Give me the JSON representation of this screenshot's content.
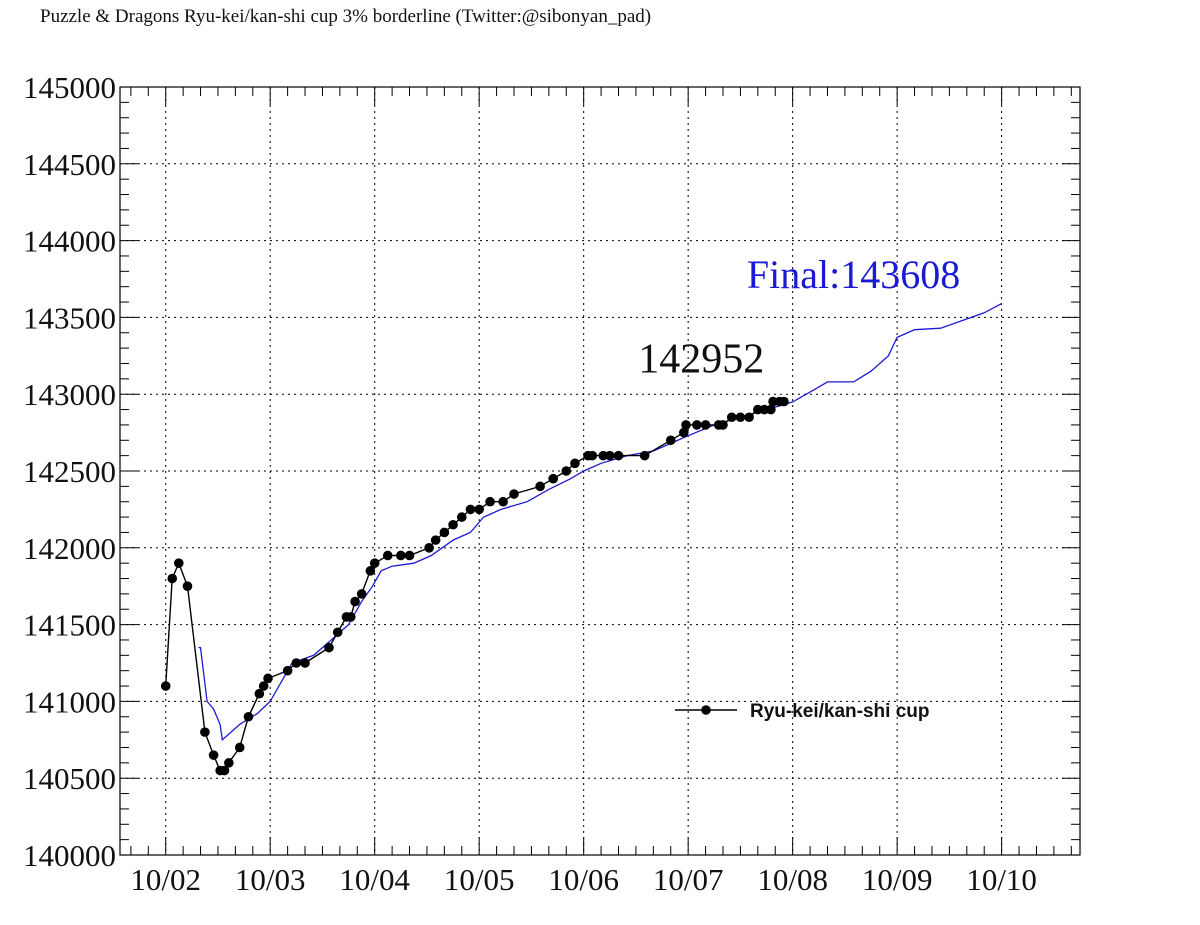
{
  "title": "Puzzle & Dragons Ryu-kei/kan-shi cup 3% borderline (Twitter:@sibonyan_pad)",
  "chart_data": {
    "type": "line",
    "title": "Puzzle & Dragons Ryu-kei/kan-shi cup 3% borderline (Twitter:@sibonyan_pad)",
    "xlabel": "",
    "ylabel": "",
    "x_axis": "date",
    "xlim": [
      "10/01 13:30",
      "10/10 18:00"
    ],
    "ylim": [
      140000,
      145000
    ],
    "x_ticks": [
      "10/02",
      "10/03",
      "10/04",
      "10/05",
      "10/06",
      "10/07",
      "10/08",
      "10/09",
      "10/10"
    ],
    "y_ticks": [
      140000,
      140500,
      141000,
      141500,
      142000,
      142500,
      143000,
      143500,
      144000,
      144500,
      145000
    ],
    "grid": true,
    "legend_position": "lower-right",
    "colors": {
      "series": "#000000",
      "reference": "#1a1ad6",
      "grid": "#000000"
    },
    "series": [
      {
        "name": "Ryu-kei/kan-shi cup",
        "color": "#000000",
        "marker": "circle",
        "points": [
          [
            "10/02 00:00",
            141100
          ],
          [
            "10/02 01:30",
            141800
          ],
          [
            "10/02 03:00",
            141900
          ],
          [
            "10/02 05:00",
            141750
          ],
          [
            "10/02 09:00",
            140800
          ],
          [
            "10/02 11:00",
            140650
          ],
          [
            "10/02 12:30",
            140550
          ],
          [
            "10/02 13:30",
            140550
          ],
          [
            "10/02 14:30",
            140600
          ],
          [
            "10/02 17:00",
            140700
          ],
          [
            "10/02 19:00",
            140900
          ],
          [
            "10/02 21:30",
            141050
          ],
          [
            "10/02 22:30",
            141100
          ],
          [
            "10/02 23:30",
            141150
          ],
          [
            "10/03 04:00",
            141200
          ],
          [
            "10/03 06:00",
            141250
          ],
          [
            "10/03 08:00",
            141250
          ],
          [
            "10/03 13:30",
            141350
          ],
          [
            "10/03 15:30",
            141450
          ],
          [
            "10/03 17:30",
            141550
          ],
          [
            "10/03 18:30",
            141550
          ],
          [
            "10/03 19:30",
            141650
          ],
          [
            "10/03 21:00",
            141700
          ],
          [
            "10/03 23:00",
            141850
          ],
          [
            "10/04 00:00",
            141900
          ],
          [
            "10/04 03:00",
            141950
          ],
          [
            "10/04 06:00",
            141950
          ],
          [
            "10/04 08:00",
            141950
          ],
          [
            "10/04 12:30",
            142000
          ],
          [
            "10/04 14:00",
            142050
          ],
          [
            "10/04 16:00",
            142100
          ],
          [
            "10/04 18:00",
            142150
          ],
          [
            "10/04 20:00",
            142200
          ],
          [
            "10/04 22:00",
            142250
          ],
          [
            "10/05 00:00",
            142250
          ],
          [
            "10/05 02:30",
            142300
          ],
          [
            "10/05 05:30",
            142300
          ],
          [
            "10/05 08:00",
            142350
          ],
          [
            "10/05 14:00",
            142400
          ],
          [
            "10/05 17:00",
            142450
          ],
          [
            "10/05 20:00",
            142500
          ],
          [
            "10/05 22:00",
            142550
          ],
          [
            "10/06 01:00",
            142600
          ],
          [
            "10/06 02:00",
            142600
          ],
          [
            "10/06 04:30",
            142600
          ],
          [
            "10/06 06:00",
            142600
          ],
          [
            "10/06 08:00",
            142600
          ],
          [
            "10/06 14:00",
            142600
          ],
          [
            "10/06 20:00",
            142700
          ],
          [
            "10/06 23:00",
            142750
          ],
          [
            "10/06 23:30",
            142800
          ],
          [
            "10/07 02:00",
            142800
          ],
          [
            "10/07 04:00",
            142800
          ],
          [
            "10/07 07:00",
            142800
          ],
          [
            "10/07 08:00",
            142800
          ],
          [
            "10/07 10:00",
            142850
          ],
          [
            "10/07 12:00",
            142850
          ],
          [
            "10/07 14:00",
            142850
          ],
          [
            "10/07 16:00",
            142900
          ],
          [
            "10/07 17:30",
            142900
          ],
          [
            "10/07 19:00",
            142900
          ],
          [
            "10/07 19:30",
            142952
          ],
          [
            "10/07 21:00",
            142952
          ],
          [
            "10/07 22:00",
            142952
          ]
        ]
      },
      {
        "name": "",
        "color": "#1a1ad6",
        "marker": "none",
        "points": [
          [
            "10/02 07:30",
            141350
          ],
          [
            "10/02 08:00",
            141350
          ],
          [
            "10/02 09:30",
            141000
          ],
          [
            "10/02 11:00",
            140950
          ],
          [
            "10/02 12:30",
            140850
          ],
          [
            "10/02 13:00",
            140750
          ],
          [
            "10/02 17:00",
            140850
          ],
          [
            "10/02 21:00",
            140920
          ],
          [
            "10/03 00:00",
            141000
          ],
          [
            "10/03 05:00",
            141250
          ],
          [
            "10/03 10:00",
            141300
          ],
          [
            "10/03 14:00",
            141400
          ],
          [
            "10/03 18:00",
            141500
          ],
          [
            "10/03 21:00",
            141650
          ],
          [
            "10/03 23:30",
            141750
          ],
          [
            "10/04 01:30",
            141850
          ],
          [
            "10/04 04:00",
            141880
          ],
          [
            "10/04 09:00",
            141900
          ],
          [
            "10/04 13:00",
            141950
          ],
          [
            "10/04 18:00",
            142050
          ],
          [
            "10/04 22:00",
            142100
          ],
          [
            "10/05 01:00",
            142200
          ],
          [
            "10/05 05:00",
            142250
          ],
          [
            "10/05 11:00",
            142300
          ],
          [
            "10/05 16:00",
            142380
          ],
          [
            "10/05 21:00",
            142450
          ],
          [
            "10/06 00:00",
            142500
          ],
          [
            "10/06 04:00",
            142550
          ],
          [
            "10/06 10:00",
            142600
          ],
          [
            "10/06 16:00",
            142630
          ],
          [
            "10/06 20:00",
            142680
          ],
          [
            "10/07 00:00",
            142730
          ],
          [
            "10/07 06:00",
            142800
          ],
          [
            "10/07 12:00",
            142850
          ],
          [
            "10/07 18:00",
            142900
          ],
          [
            "10/08 00:00",
            142950
          ],
          [
            "10/08 05:00",
            143030
          ],
          [
            "10/08 08:00",
            143080
          ],
          [
            "10/08 14:00",
            143080
          ],
          [
            "10/08 18:00",
            143150
          ],
          [
            "10/08 22:00",
            143250
          ],
          [
            "10/09 00:00",
            143370
          ],
          [
            "10/09 04:00",
            143420
          ],
          [
            "10/09 10:00",
            143430
          ],
          [
            "10/09 15:00",
            143480
          ],
          [
            "10/09 20:00",
            143530
          ],
          [
            "10/10 00:00",
            143590
          ]
        ]
      }
    ],
    "annotations": [
      {
        "text": "142952",
        "x": "10/07 03:00",
        "y": 143140,
        "color": "#111111"
      },
      {
        "text": "Final:143608",
        "x": "10/08 14:00",
        "y": 143690,
        "color": "#1a1ad6"
      }
    ]
  }
}
